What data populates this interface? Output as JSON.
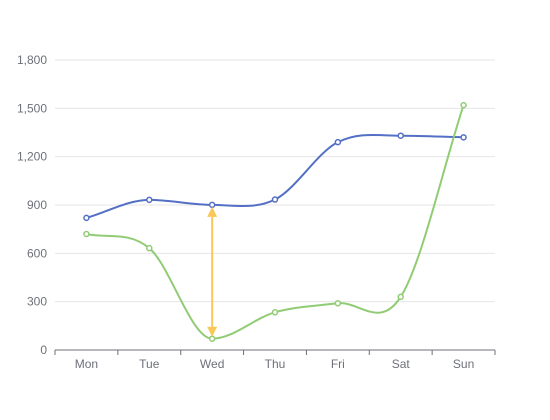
{
  "chart_data": {
    "type": "line",
    "categories": [
      "Mon",
      "Tue",
      "Wed",
      "Thu",
      "Fri",
      "Sat",
      "Sun"
    ],
    "ylim": [
      0,
      1800
    ],
    "yticks": [
      0,
      300,
      600,
      900,
      1200,
      1500,
      1800
    ],
    "ytick_labels": [
      "0",
      "300",
      "600",
      "900",
      "1,200",
      "1,500",
      "1,800"
    ],
    "grid": true,
    "smooth": true,
    "series": [
      {
        "values": [
          820,
          932,
          901,
          934,
          1290,
          1330,
          1320
        ],
        "color": "#5470c6"
      },
      {
        "values": [
          720,
          632,
          70,
          234,
          290,
          330,
          1520
        ],
        "color": "#91cc75"
      }
    ],
    "annotation": {
      "type": "double-arrow",
      "category": "Wed",
      "from": 70,
      "to": 901,
      "color": "#fac858"
    }
  }
}
